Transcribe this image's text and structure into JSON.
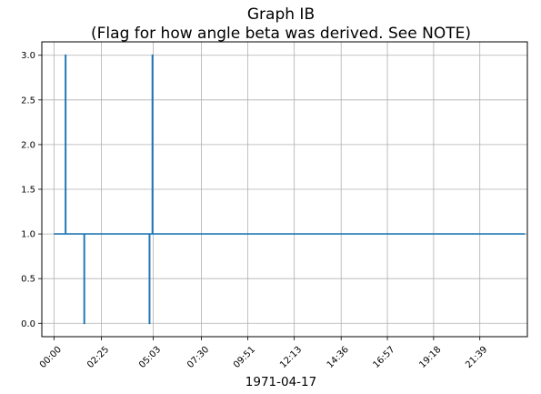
{
  "chart_data": {
    "type": "line",
    "title": [
      "Graph IB",
      "(Flag for how angle beta was derived. See NOTE)"
    ],
    "xlabel": "1971-04-17",
    "ylabel": "",
    "x_unit": "time of day (hh:mm)",
    "xlim": [
      "-00:37",
      "24:04"
    ],
    "ylim": [
      -0.15,
      3.15
    ],
    "x_tick_labels": [
      "00:00",
      "02:25",
      "05:03",
      "07:30",
      "09:51",
      "12:13",
      "14:36",
      "16:57",
      "19:18",
      "21:39"
    ],
    "y_ticks": [
      0.0,
      0.5,
      1.0,
      1.5,
      2.0,
      2.5,
      3.0
    ],
    "y_tick_labels": [
      "0.0",
      "0.5",
      "1.0",
      "1.5",
      "2.0",
      "2.5",
      "3.0"
    ],
    "grid": true,
    "series": [
      {
        "color": "#1f77b4",
        "points": [
          {
            "x": "00:00",
            "y": 1
          },
          {
            "x": "00:35",
            "y": 1
          },
          {
            "x": "00:35",
            "y": 3
          },
          {
            "x": "00:36",
            "y": 3
          },
          {
            "x": "00:36",
            "y": 1
          },
          {
            "x": "01:32",
            "y": 1
          },
          {
            "x": "01:32",
            "y": 0
          },
          {
            "x": "01:33",
            "y": 0
          },
          {
            "x": "01:33",
            "y": 1
          },
          {
            "x": "04:51",
            "y": 1
          },
          {
            "x": "04:51",
            "y": 0
          },
          {
            "x": "04:52",
            "y": 0
          },
          {
            "x": "04:52",
            "y": 1
          },
          {
            "x": "05:00",
            "y": 1
          },
          {
            "x": "05:00",
            "y": 3
          },
          {
            "x": "05:01",
            "y": 3
          },
          {
            "x": "05:01",
            "y": 1
          },
          {
            "x": "23:57",
            "y": 1
          }
        ]
      }
    ]
  },
  "colors": {
    "grid": "#b0b0b0",
    "axes": "#000000",
    "background": "#ffffff"
  }
}
